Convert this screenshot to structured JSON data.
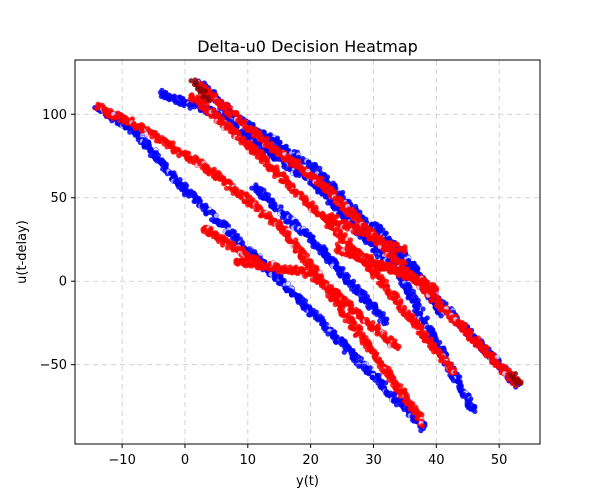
{
  "chart_data": {
    "type": "scatter",
    "title": "Delta-u0 Decision Heatmap",
    "xlabel": "y(t)",
    "ylabel": "u(t-delay)",
    "xlim": [
      -17.5,
      56.5
    ],
    "ylim": [
      -97.5,
      132.5
    ],
    "xticks": [
      -10,
      0,
      10,
      20,
      30,
      40,
      50
    ],
    "yticks": [
      -50,
      0,
      50,
      100
    ],
    "grid": true,
    "colors": {
      "red": "#ff0000",
      "blue": "#0000ff",
      "dark_red": "#8b0000",
      "pale": "#d8d8ff"
    },
    "series": [
      {
        "name": "",
        "color": "#0000ff",
        "segments": [
          {
            "x": [
              -14,
              -8
            ],
            "y": [
              105,
              90
            ]
          },
          {
            "x": [
              -8,
              0
            ],
            "y": [
              90,
              55
            ]
          },
          {
            "x": [
              0,
              18
            ],
            "y": [
              55,
              -10
            ]
          },
          {
            "x": [
              18,
              38
            ],
            "y": [
              -10,
              -88
            ]
          },
          {
            "x": [
              2,
              8
            ],
            "y": [
              120,
              98
            ]
          },
          {
            "x": [
              8,
              20
            ],
            "y": [
              98,
              70
            ]
          },
          {
            "x": [
              20,
              53
            ],
            "y": [
              70,
              -62
            ]
          },
          {
            "x": [
              -4,
              5
            ],
            "y": [
              113,
              100
            ]
          },
          {
            "x": [
              5,
              20
            ],
            "y": [
              100,
              60
            ]
          },
          {
            "x": [
              20,
              34
            ],
            "y": [
              60,
              5
            ]
          },
          {
            "x": [
              34,
              46
            ],
            "y": [
              5,
              -78
            ]
          },
          {
            "x": [
              11,
              22
            ],
            "y": [
              57,
              18
            ]
          },
          {
            "x": [
              22,
              32
            ],
            "y": [
              18,
              -25
            ]
          },
          {
            "x": [
              30,
              36
            ],
            "y": [
              35,
              10
            ]
          },
          {
            "x": [
              36,
              41
            ],
            "y": [
              10,
              -20
            ]
          }
        ]
      },
      {
        "name": "",
        "color": "#ff0000",
        "segments": [
          {
            "x": [
              -14,
              -7
            ],
            "y": [
              105,
              92
            ]
          },
          {
            "x": [
              -7,
              5
            ],
            "y": [
              92,
              64
            ]
          },
          {
            "x": [
              5,
              16
            ],
            "y": [
              64,
              30
            ]
          },
          {
            "x": [
              16,
              38
            ],
            "y": [
              30,
              -85
            ]
          },
          {
            "x": [
              2,
              14
            ],
            "y": [
              118,
              80
            ]
          },
          {
            "x": [
              14,
              22
            ],
            "y": [
              80,
              58
            ]
          },
          {
            "x": [
              22,
              53
            ],
            "y": [
              58,
              -62
            ]
          },
          {
            "x": [
              1,
              12
            ],
            "y": [
              112,
              75
            ]
          },
          {
            "x": [
              12,
              28
            ],
            "y": [
              75,
              15
            ]
          },
          {
            "x": [
              28,
              43
            ],
            "y": [
              15,
              -55
            ]
          },
          {
            "x": [
              3,
              12
            ],
            "y": [
              32,
              10
            ]
          },
          {
            "x": [
              8,
              20
            ],
            "y": [
              12,
              5
            ]
          },
          {
            "x": [
              20,
              34
            ],
            "y": [
              5,
              -40
            ]
          },
          {
            "x": [
              22,
              35
            ],
            "y": [
              40,
              18
            ]
          },
          {
            "x": [
              24,
              38
            ],
            "y": [
              20,
              0
            ]
          },
          {
            "x": [
              28,
              40
            ],
            "y": [
              15,
              -5
            ]
          }
        ]
      },
      {
        "name": "",
        "color": "#8b0000",
        "segments": [
          {
            "x": [
              1,
              4
            ],
            "y": [
              120,
              108
            ]
          },
          {
            "x": [
              52,
              53
            ],
            "y": [
              -55,
              -62
            ]
          }
        ]
      }
    ]
  }
}
